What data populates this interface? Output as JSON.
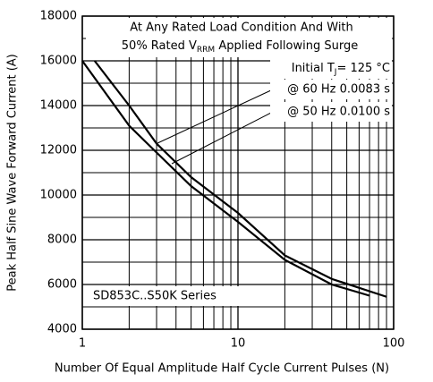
{
  "chart_data": {
    "type": "line",
    "xlabel": "Number Of Equal Amplitude Half Cycle Current Pulses (N)",
    "ylabel": "Peak Half Sine Wave Forward Current (A)",
    "xscale": "log",
    "grid": true,
    "xlim": [
      1,
      100
    ],
    "xticks": [
      1,
      10,
      100
    ],
    "xminor": [
      2,
      3,
      4,
      5,
      6,
      7,
      8,
      9,
      20,
      30,
      40,
      50,
      60,
      70,
      80,
      90
    ],
    "ylim": [
      4000,
      18000
    ],
    "yticks": [
      4000,
      6000,
      8000,
      10000,
      12000,
      14000,
      16000,
      18000
    ],
    "yminor": [
      5000,
      7000,
      9000,
      11000,
      13000,
      15000,
      17000
    ],
    "annotations": {
      "line1": "At Any Rated Load Condition And With",
      "line2": [
        "50% Rated V",
        "RRM",
        " Applied Following Surge"
      ],
      "line3": [
        "Initial T",
        "J",
        "= 125 °C"
      ],
      "device": "SD853C..S50K Series"
    },
    "series": [
      {
        "name": "@ 60 Hz 0.0083 s",
        "color": "#000000",
        "x": [
          1.2,
          2,
          3,
          5,
          10,
          20,
          40,
          90
        ],
        "values": [
          16000,
          14000,
          12300,
          10800,
          9200,
          7300,
          6250,
          5450
        ]
      },
      {
        "name": "@ 50 Hz 0.0100 s",
        "color": "#000000",
        "x": [
          1,
          2,
          3,
          5,
          10,
          20,
          40,
          70
        ],
        "values": [
          16000,
          13100,
          11900,
          10400,
          8800,
          7100,
          6000,
          5500
        ]
      }
    ]
  }
}
